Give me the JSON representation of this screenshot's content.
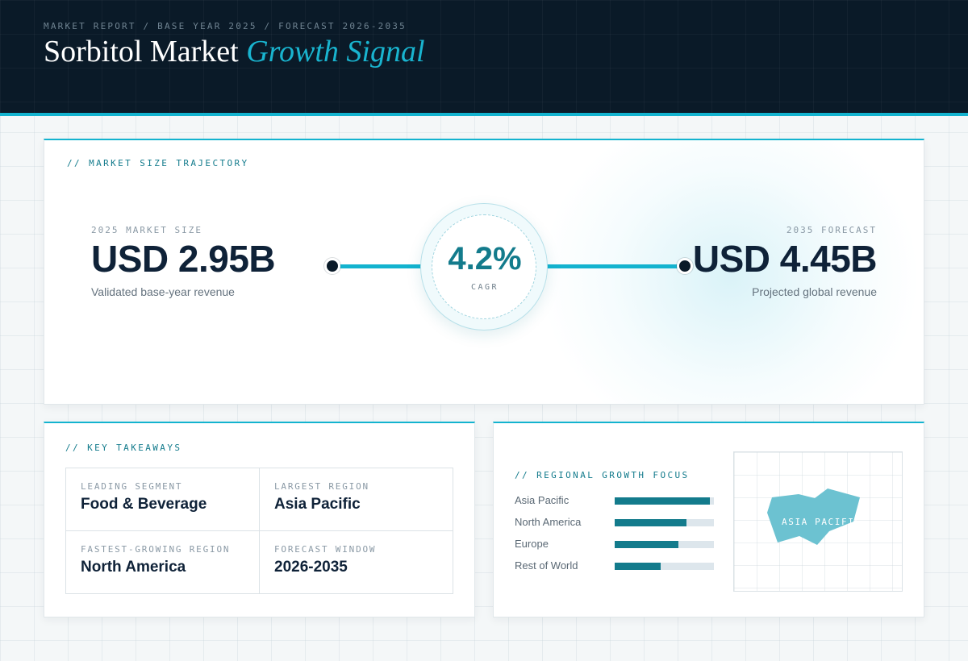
{
  "header": {
    "breadcrumb": "MARKET REPORT / BASE YEAR 2025 / FORECAST 2026-2035",
    "title_main": "Sorbitol Market",
    "title_accent": "Growth Signal"
  },
  "trajectory": {
    "label": "// MARKET SIZE TRAJECTORY",
    "start": {
      "label": "2025 MARKET SIZE",
      "value": "USD 2.95B",
      "sub": "Validated base-year revenue"
    },
    "end": {
      "label": "2035 FORECAST",
      "value": "USD 4.45B",
      "sub": "Projected global revenue"
    },
    "cagr": {
      "value": "4.2%",
      "label": "CAGR"
    }
  },
  "takeaways": {
    "label": "// KEY TAKEAWAYS",
    "cells": [
      {
        "label": "LEADING SEGMENT",
        "value": "Food & Beverage"
      },
      {
        "label": "LARGEST REGION",
        "value": "Asia Pacific"
      },
      {
        "label": "FASTEST-GROWING REGION",
        "value": "North America"
      },
      {
        "label": "FORECAST WINDOW",
        "value": "2026-2035"
      }
    ]
  },
  "regional": {
    "label": "// REGIONAL GROWTH FOCUS",
    "map_label": "ASIA PACIFIC"
  },
  "colors": {
    "accent": "#13b3cf",
    "bar": "#137b8c",
    "bar_track": "#dde6ec",
    "header_bg": "#0a1a28",
    "map_shape": "#6cc2d1"
  },
  "chart_data": {
    "type": "bar",
    "orientation": "horizontal",
    "categories": [
      "Asia Pacific",
      "North America",
      "Europe",
      "Rest of World"
    ],
    "values": [
      96,
      72,
      64,
      46
    ],
    "xlim": [
      0,
      100
    ],
    "grid": false
  }
}
